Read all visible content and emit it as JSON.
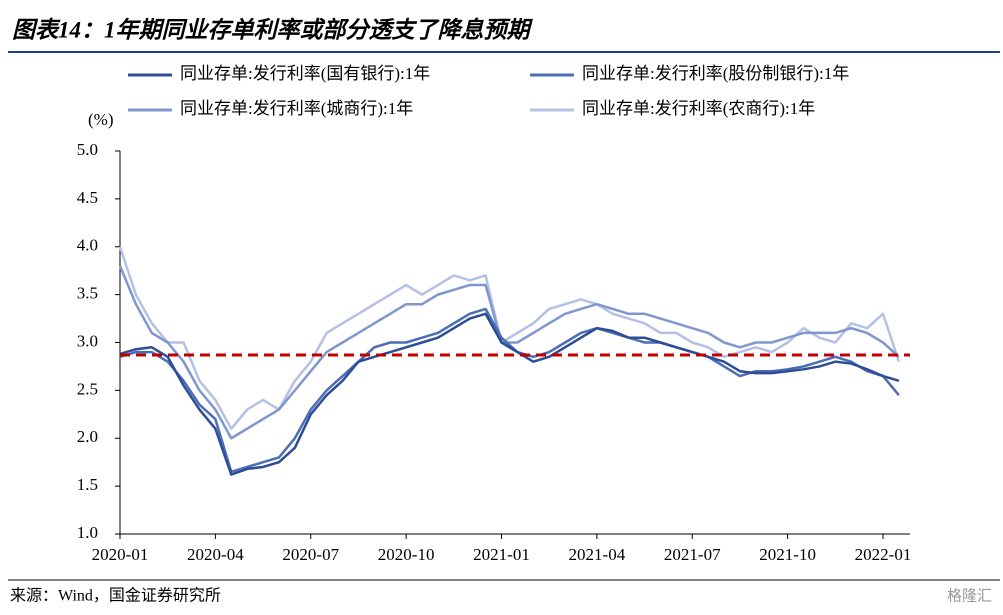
{
  "chart_data": {
    "type": "line",
    "title": "图表14：1年期同业存单利率或部分透支了降息预期",
    "y_label": "(%)",
    "source": "来源：Wind，国金证券研究所",
    "watermark": "格隆汇",
    "categories": [
      "2020-01",
      null,
      null,
      null,
      null,
      null,
      "2020-04",
      null,
      null,
      null,
      null,
      null,
      "2020-07",
      null,
      null,
      null,
      null,
      null,
      "2020-10",
      null,
      null,
      null,
      null,
      null,
      "2021-01",
      null,
      null,
      null,
      null,
      null,
      "2021-04",
      null,
      null,
      null,
      null,
      null,
      "2021-07",
      null,
      null,
      null,
      null,
      null,
      "2021-10",
      null,
      null,
      null,
      null,
      null,
      "2022-01",
      null
    ],
    "series": [
      {
        "name": "同业存单:发行利率(国有银行):1年",
        "color": "#2e4d94",
        "values": [
          2.88,
          2.93,
          2.95,
          2.85,
          2.55,
          2.3,
          2.1,
          1.62,
          1.68,
          1.7,
          1.75,
          1.9,
          2.25,
          2.45,
          2.6,
          2.8,
          2.85,
          2.9,
          2.95,
          3.0,
          3.05,
          3.15,
          3.25,
          3.3,
          3.0,
          2.9,
          2.8,
          2.85,
          2.95,
          3.05,
          3.15,
          3.12,
          3.05,
          3.05,
          3.0,
          2.95,
          2.9,
          2.85,
          2.8,
          2.7,
          2.68,
          2.68,
          2.7,
          2.72,
          2.75,
          2.8,
          2.78,
          2.72,
          2.65,
          2.6
        ]
      },
      {
        "name": "同业存单:发行利率(股份制银行):1年",
        "color": "#4a6db6",
        "values": [
          2.85,
          2.9,
          2.9,
          2.8,
          2.6,
          2.35,
          2.2,
          1.65,
          1.7,
          1.75,
          1.8,
          2.0,
          2.3,
          2.5,
          2.65,
          2.8,
          2.95,
          3.0,
          3.0,
          3.05,
          3.1,
          3.2,
          3.3,
          3.35,
          3.05,
          2.9,
          2.85,
          2.9,
          3.0,
          3.1,
          3.15,
          3.1,
          3.05,
          3.0,
          3.0,
          2.95,
          2.9,
          2.85,
          2.75,
          2.65,
          2.7,
          2.7,
          2.72,
          2.75,
          2.8,
          2.85,
          2.8,
          2.7,
          2.65,
          2.45
        ]
      },
      {
        "name": "同业存单:发行利率(城商行):1年",
        "color": "#7f96cf",
        "values": [
          3.8,
          3.4,
          3.1,
          3.0,
          2.8,
          2.5,
          2.3,
          2.0,
          2.1,
          2.2,
          2.3,
          2.5,
          2.7,
          2.9,
          3.0,
          3.1,
          3.2,
          3.3,
          3.4,
          3.4,
          3.5,
          3.55,
          3.6,
          3.6,
          3.0,
          3.0,
          3.1,
          3.2,
          3.3,
          3.35,
          3.4,
          3.35,
          3.3,
          3.3,
          3.25,
          3.2,
          3.15,
          3.1,
          3.0,
          2.95,
          3.0,
          3.0,
          3.05,
          3.1,
          3.1,
          3.1,
          3.15,
          3.1,
          3.0,
          2.85
        ]
      },
      {
        "name": "同业存单:发行利率(农商行):1年",
        "color": "#b4c0e4",
        "values": [
          4.0,
          3.5,
          3.2,
          3.0,
          3.0,
          2.6,
          2.4,
          2.1,
          2.3,
          2.4,
          2.3,
          2.6,
          2.8,
          3.1,
          3.2,
          3.3,
          3.4,
          3.5,
          3.6,
          3.5,
          3.6,
          3.7,
          3.65,
          3.7,
          3.0,
          3.1,
          3.2,
          3.35,
          3.4,
          3.45,
          3.4,
          3.3,
          3.25,
          3.2,
          3.1,
          3.1,
          3.0,
          2.95,
          2.85,
          2.9,
          2.95,
          2.9,
          3.0,
          3.15,
          3.05,
          3.0,
          3.2,
          3.15,
          3.3,
          2.8
        ]
      }
    ],
    "reference_line": {
      "value": 2.87,
      "color": "#c00000"
    },
    "ylim": [
      1,
      5
    ],
    "yticks": [
      {
        "value": 1,
        "label": "1.0"
      },
      {
        "value": 1.5,
        "label": "1.5"
      },
      {
        "value": 2,
        "label": "2.0"
      },
      {
        "value": 2.5,
        "label": "2.5"
      },
      {
        "value": 3,
        "label": "3.0"
      },
      {
        "value": 3.5,
        "label": "3.5"
      },
      {
        "value": 4,
        "label": "4.0"
      },
      {
        "value": 4.5,
        "label": "4.5"
      },
      {
        "value": 5,
        "label": "5.0"
      }
    ],
    "grid": false,
    "legend": "top"
  }
}
